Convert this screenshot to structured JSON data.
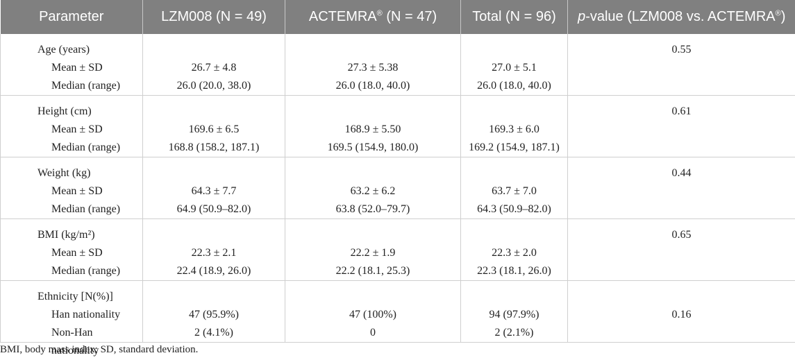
{
  "headers": {
    "parameter": "Parameter",
    "lzm008": "LZM008 (N = 49)",
    "actemra_pre": "ACTEMRA",
    "actemra_sup": "®",
    "actemra_post": " (N = 47)",
    "total": "Total (N = 96)",
    "pvalue_italic": "p",
    "pvalue_pre": "-value (LZM008 vs. ACTEMRA",
    "pvalue_sup": "®",
    "pvalue_post": ")"
  },
  "rows": [
    {
      "label": "Age (years)",
      "sub1": "Mean ± SD",
      "sub2": "Median (range)",
      "lzm_1": "26.7 ± 4.8",
      "lzm_2": "26.0 (20.0, 38.0)",
      "act_1": "27.3 ± 5.38",
      "act_2": "26.0 (18.0, 40.0)",
      "tot_1": "27.0 ± 5.1",
      "tot_2": "26.0 (18.0, 40.0)",
      "p": "0.55"
    },
    {
      "label": "Height (cm)",
      "sub1": "Mean ± SD",
      "sub2": "Median (range)",
      "lzm_1": "169.6 ± 6.5",
      "lzm_2": "168.8 (158.2, 187.1)",
      "act_1": "168.9 ± 5.50",
      "act_2": "169.5 (154.9, 180.0)",
      "tot_1": "169.3 ± 6.0",
      "tot_2": "169.2 (154.9, 187.1)",
      "p": "0.61"
    },
    {
      "label": "Weight (kg)",
      "sub1": "Mean ± SD",
      "sub2": "Median (range)",
      "lzm_1": "64.3 ± 7.7",
      "lzm_2": "64.9 (50.9–82.0)",
      "act_1": "63.2 ± 6.2",
      "act_2": "63.8 (52.0–79.7)",
      "tot_1": "63.7 ± 7.0",
      "tot_2": "64.3 (50.9–82.0)",
      "p": "0.44"
    },
    {
      "label": "BMI (kg/m²)",
      "sub1": "Mean ± SD",
      "sub2": "Median (range)",
      "lzm_1": "22.3 ± 2.1",
      "lzm_2": "22.4 (18.9, 26.0)",
      "act_1": "22.2 ± 1.9",
      "act_2": "22.2 (18.1, 25.3)",
      "tot_1": "22.3 ± 2.0",
      "tot_2": "22.3 (18.1, 26.0)",
      "p": "0.65"
    },
    {
      "label": "Ethnicity [N(%)]",
      "sub1": "Han nationality",
      "sub2": "Non-Han nationality",
      "lzm_1": "47 (95.9%)",
      "lzm_2": "2 (4.1%)",
      "act_1": "47 (100%)",
      "act_2": "0",
      "tot_1": "94 (97.9%)",
      "tot_2": "2 (2.1%)",
      "p": "0.16"
    }
  ],
  "footnote": "BMI, body mass index; SD, standard deviation."
}
